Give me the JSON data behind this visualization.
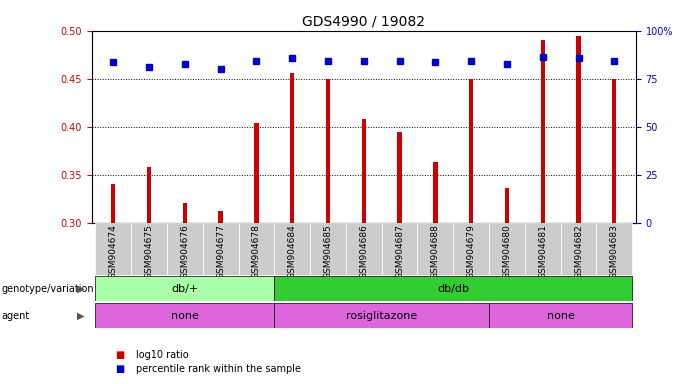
{
  "title": "GDS4990 / 19082",
  "samples": [
    "GSM904674",
    "GSM904675",
    "GSM904676",
    "GSM904677",
    "GSM904678",
    "GSM904684",
    "GSM904685",
    "GSM904686",
    "GSM904687",
    "GSM904688",
    "GSM904679",
    "GSM904680",
    "GSM904681",
    "GSM904682",
    "GSM904683"
  ],
  "log10_ratio": [
    0.34,
    0.358,
    0.321,
    0.312,
    0.404,
    0.456,
    0.45,
    0.408,
    0.395,
    0.363,
    0.45,
    0.336,
    0.49,
    0.495,
    0.45
  ],
  "percentile_left_coords": [
    0.467,
    0.462,
    0.465,
    0.46,
    0.468,
    0.472,
    0.468,
    0.468,
    0.468,
    0.467,
    0.468,
    0.465,
    0.473,
    0.472,
    0.468
  ],
  "ylim_left": [
    0.3,
    0.5
  ],
  "ylim_right": [
    0,
    100
  ],
  "yticks_left": [
    0.3,
    0.35,
    0.4,
    0.45,
    0.5
  ],
  "yticks_right": [
    0,
    25,
    50,
    75,
    100
  ],
  "ytick_right_labels": [
    "0",
    "25",
    "50",
    "75",
    "100%"
  ],
  "bar_color": "#cc0000",
  "dot_color": "#0000cc",
  "bar_bottom": 0.3,
  "bar_width": 0.12,
  "genotype_groups": [
    {
      "label": "db/+",
      "start": 0,
      "end": 5,
      "color": "#aaffaa"
    },
    {
      "label": "db/db",
      "start": 5,
      "end": 15,
      "color": "#33cc33"
    }
  ],
  "agent_groups": [
    {
      "label": "none",
      "start": 0,
      "end": 5
    },
    {
      "label": "rosiglitazone",
      "start": 5,
      "end": 11
    },
    {
      "label": "none",
      "start": 11,
      "end": 15
    }
  ],
  "agent_color": "#dd66dd",
  "axis_color_left": "#cc0000",
  "axis_color_right": "#0000cc",
  "bg_color": "#ffffff",
  "tick_bg_color": "#cccccc",
  "tick_label_size": 6.5,
  "title_fontsize": 10
}
